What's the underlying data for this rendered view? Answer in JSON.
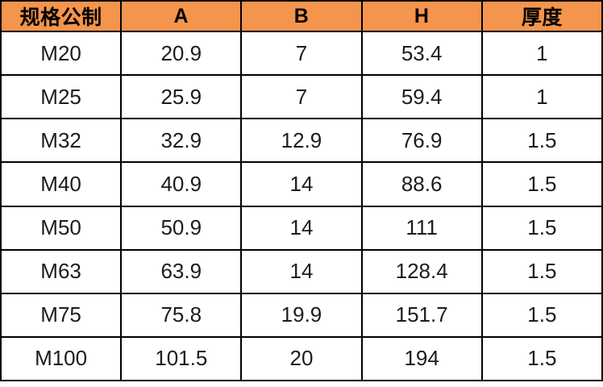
{
  "table": {
    "columns": [
      "规格公制",
      "A",
      "B",
      "H",
      "厚度"
    ],
    "rows": [
      {
        "spec": "M20",
        "a": "20.9",
        "b": "7",
        "h": "53.4",
        "thickness": "1"
      },
      {
        "spec": "M25",
        "a": "25.9",
        "b": "7",
        "h": "59.4",
        "thickness": "1"
      },
      {
        "spec": "M32",
        "a": "32.9",
        "b": "12.9",
        "h": "76.9",
        "thickness": "1.5"
      },
      {
        "spec": "M40",
        "a": "40.9",
        "b": "14",
        "h": "88.6",
        "thickness": "1.5"
      },
      {
        "spec": "M50",
        "a": "50.9",
        "b": "14",
        "h": "111",
        "thickness": "1.5"
      },
      {
        "spec": "M63",
        "a": "63.9",
        "b": "14",
        "h": "128.4",
        "thickness": "1.5"
      },
      {
        "spec": "M75",
        "a": "75.8",
        "b": "19.9",
        "h": "151.7",
        "thickness": "1.5"
      },
      {
        "spec": "M100",
        "a": "101.5",
        "b": "20",
        "h": "194",
        "thickness": "1.5"
      }
    ],
    "colors": {
      "header_bg": "#F5944C",
      "border": "#000000",
      "header_text": "#000000",
      "cell_text": "#1c1c1c",
      "cell_bg": "#ffffff"
    }
  }
}
